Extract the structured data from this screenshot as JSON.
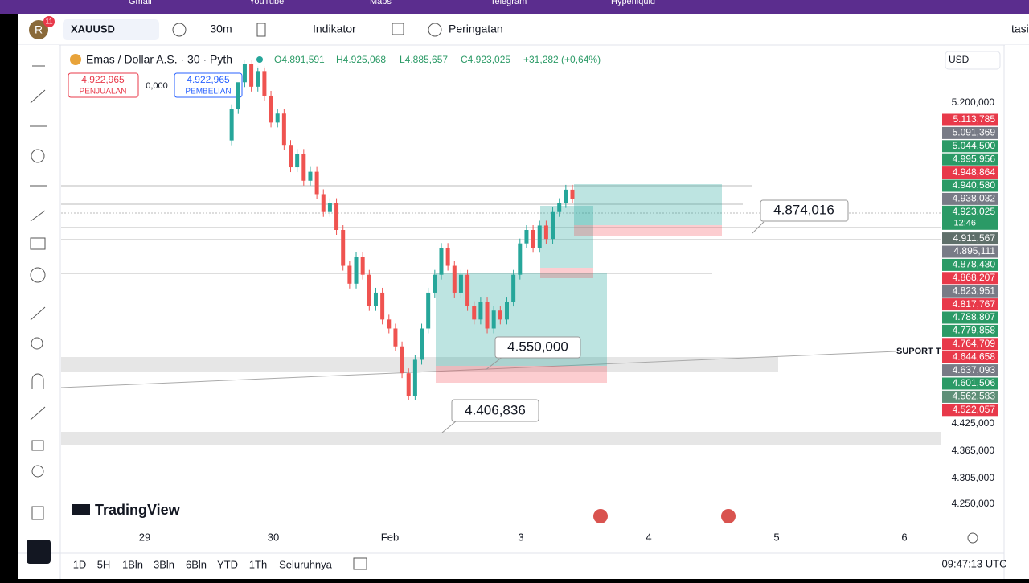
{
  "browser_tabs": [
    "Gmail",
    "YouTube",
    "Maps",
    "Telegram",
    "Hyperliquid"
  ],
  "toolbar": {
    "avatar": "R",
    "badge": "11",
    "symbol": "XAUUSD",
    "interval": "30m",
    "indicators": "Indikator",
    "alerts": "Peringatan",
    "cut_right": "tasi"
  },
  "legend": {
    "name": "Emas / Dollar A.S. · 30 · Pyth",
    "open": "O4.891,591",
    "high": "H4.925,068",
    "low": "L4.885,657",
    "close": "C4.923,025",
    "change": "+31,282 (+0,64%)"
  },
  "trade": {
    "sell_price": "4.922,965",
    "sell_label": "PENJUALAN",
    "spread": "0,000",
    "buy_price": "4.922,965",
    "buy_label": "PEMBELIAN"
  },
  "currency": "USD",
  "price_axis": [
    "5.200,000",
    "4.425,000",
    "4.365,000",
    "4.305,000",
    "4.250,000"
  ],
  "price_tags": [
    {
      "label": "5.113,785",
      "color": "#e8394a"
    },
    {
      "label": "5.091,369",
      "color": "#787b86"
    },
    {
      "label": "5.044,500",
      "color": "#2b9a66"
    },
    {
      "label": "4.995,956",
      "color": "#2b9a66"
    },
    {
      "label": "4.948,864",
      "color": "#e8394a"
    },
    {
      "label": "4.940,580",
      "color": "#2b9a66"
    },
    {
      "label": "4.938,032",
      "color": "#787b86"
    },
    {
      "label": "4.923,025",
      "color": "#2b9a66"
    },
    {
      "label": "4.911,567",
      "color": "#5f6f6a"
    },
    {
      "label": "4.895,111",
      "color": "#787b86"
    },
    {
      "label": "4.878,430",
      "color": "#2b9a66"
    },
    {
      "label": "4.868,207",
      "color": "#e8394a"
    },
    {
      "label": "4.823,951",
      "color": "#787b86"
    },
    {
      "label": "4.817,767",
      "color": "#e8394a"
    },
    {
      "label": "4.788,807",
      "color": "#2b9a66"
    },
    {
      "label": "4.779,858",
      "color": "#2b9a66"
    },
    {
      "label": "4.764,709",
      "color": "#e8394a"
    },
    {
      "label": "4.644,658",
      "color": "#e8394a"
    },
    {
      "label": "4.637,093",
      "color": "#787b86"
    },
    {
      "label": "4.601,506",
      "color": "#2b9a66"
    },
    {
      "label": "4.562,583",
      "color": "#5f8f78"
    },
    {
      "label": "4.522,057",
      "color": "#e8394a"
    }
  ],
  "tag_time": "12:46",
  "annotations": [
    "4.874,016",
    "4.550,000",
    "4.406,836",
    "SUPORT T"
  ],
  "time_axis": [
    "29",
    "30",
    "Feb",
    "3",
    "4",
    "5",
    "6"
  ],
  "ranges": [
    "1D",
    "5H",
    "1Bln",
    "3Bln",
    "6Bln",
    "YTD",
    "1Th",
    "Seluruhnya"
  ],
  "clock": "09:47:13 UTC",
  "brand": "TradingView",
  "candles": {
    "close": [
      5020,
      5090,
      5150,
      5190,
      5140,
      5175,
      5120,
      5060,
      5080,
      5010,
      4960,
      4990,
      4930,
      4950,
      4900,
      4860,
      4880,
      4820,
      4740,
      4700,
      4760,
      4720,
      4650,
      4680,
      4620,
      4600,
      4560,
      4500,
      4450,
      4530,
      4600,
      4680,
      4720,
      4780,
      4740,
      4680,
      4720,
      4650,
      4620,
      4660,
      4600,
      4640,
      4620,
      4660,
      4720,
      4790,
      4820,
      4780,
      4830,
      4800,
      4860,
      4880,
      4910,
      4890
    ]
  }
}
